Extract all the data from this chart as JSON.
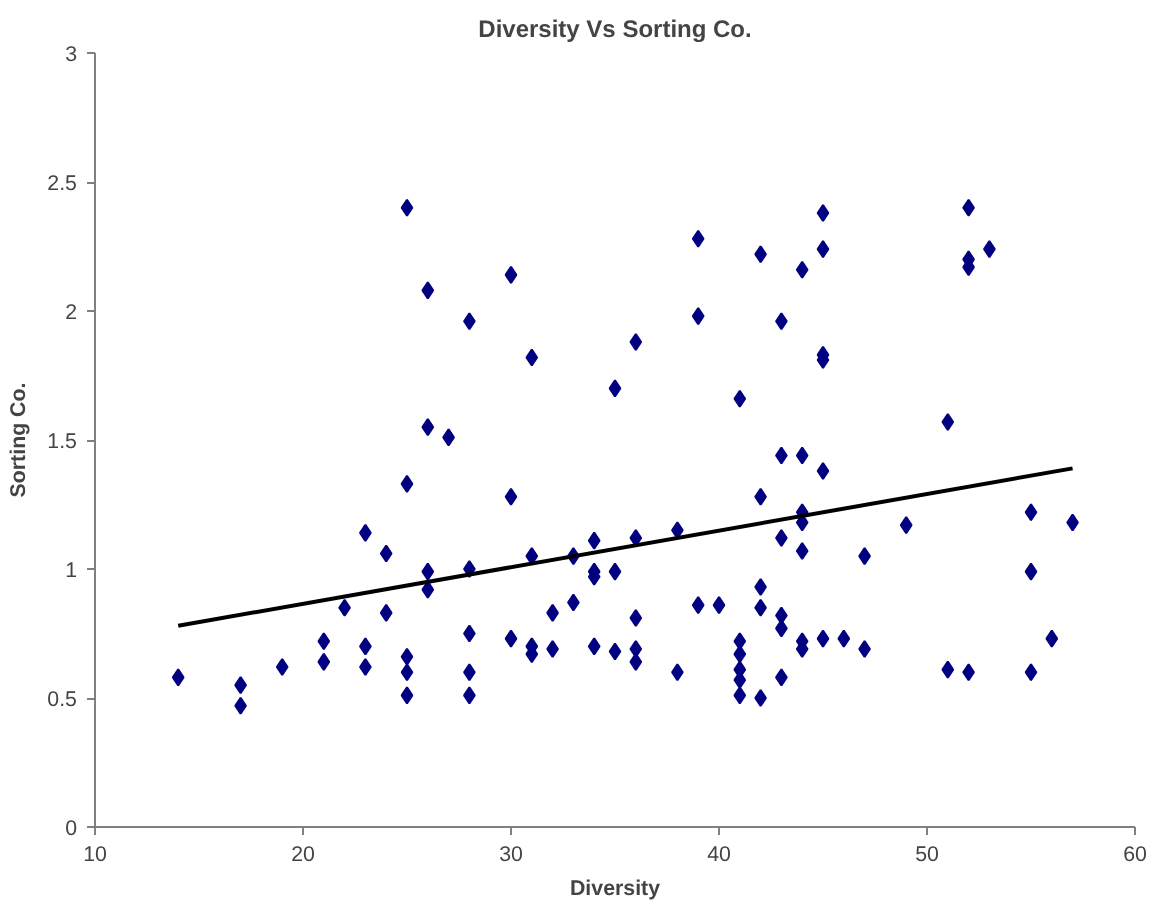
{
  "chart_data": {
    "type": "scatter",
    "title": "Diversity Vs Sorting Co.",
    "xlabel": "Diversity",
    "ylabel": "Sorting Co.",
    "xlim": [
      10,
      60
    ],
    "ylim": [
      0,
      3
    ],
    "xticks": [
      10,
      20,
      30,
      40,
      50,
      60
    ],
    "yticks": [
      0,
      0.5,
      1,
      1.5,
      2,
      2.5,
      3
    ],
    "grid": false,
    "marker": "diamond",
    "series": [
      {
        "color": "#000080",
        "x": [
          14,
          17,
          17,
          19,
          21,
          21,
          22,
          23,
          23,
          23,
          24,
          24,
          25,
          25,
          25,
          25,
          25,
          26,
          26,
          26,
          26,
          27,
          28,
          28,
          28,
          28,
          28,
          30,
          30,
          30,
          31,
          31,
          31,
          31,
          32,
          32,
          33,
          33,
          34,
          34,
          34,
          34,
          35,
          35,
          35,
          36,
          36,
          36,
          36,
          36,
          38,
          38,
          39,
          39,
          39,
          40,
          41,
          41,
          41,
          41,
          41,
          41,
          42,
          42,
          42,
          42,
          42,
          43,
          43,
          43,
          43,
          43,
          43,
          44,
          44,
          44,
          44,
          44,
          44,
          44,
          45,
          45,
          45,
          45,
          45,
          45,
          46,
          47,
          47,
          49,
          51,
          51,
          52,
          52,
          52,
          52,
          53,
          55,
          55,
          55,
          56,
          57
        ],
        "values": [
          0.58,
          0.55,
          0.47,
          0.62,
          0.72,
          0.64,
          0.85,
          1.14,
          0.7,
          0.62,
          1.06,
          0.83,
          2.4,
          1.33,
          0.66,
          0.6,
          0.51,
          2.08,
          1.55,
          0.99,
          0.92,
          1.51,
          1.96,
          1.0,
          0.75,
          0.6,
          0.51,
          2.14,
          1.28,
          0.73,
          1.82,
          1.05,
          0.7,
          0.67,
          0.83,
          0.69,
          1.05,
          0.87,
          1.11,
          0.99,
          0.97,
          0.7,
          1.7,
          0.99,
          0.68,
          1.88,
          1.12,
          0.81,
          0.69,
          0.64,
          1.15,
          0.6,
          2.28,
          1.98,
          0.86,
          0.86,
          1.66,
          0.72,
          0.67,
          0.61,
          0.57,
          0.51,
          2.22,
          1.28,
          0.93,
          0.85,
          0.5,
          1.96,
          1.44,
          1.12,
          0.82,
          0.77,
          0.58,
          2.16,
          1.44,
          1.22,
          1.18,
          1.07,
          0.72,
          0.69,
          2.38,
          2.24,
          1.83,
          1.81,
          1.38,
          0.73,
          0.73,
          1.05,
          0.69,
          1.17,
          1.57,
          0.61,
          2.4,
          2.2,
          2.17,
          0.6,
          2.24,
          1.22,
          0.99,
          0.6,
          0.73,
          1.18
        ]
      },
      {
        "type": "line",
        "marker": "none",
        "color": "#000000",
        "x": [
          14,
          57
        ],
        "values": [
          0.78,
          1.39
        ]
      }
    ]
  }
}
